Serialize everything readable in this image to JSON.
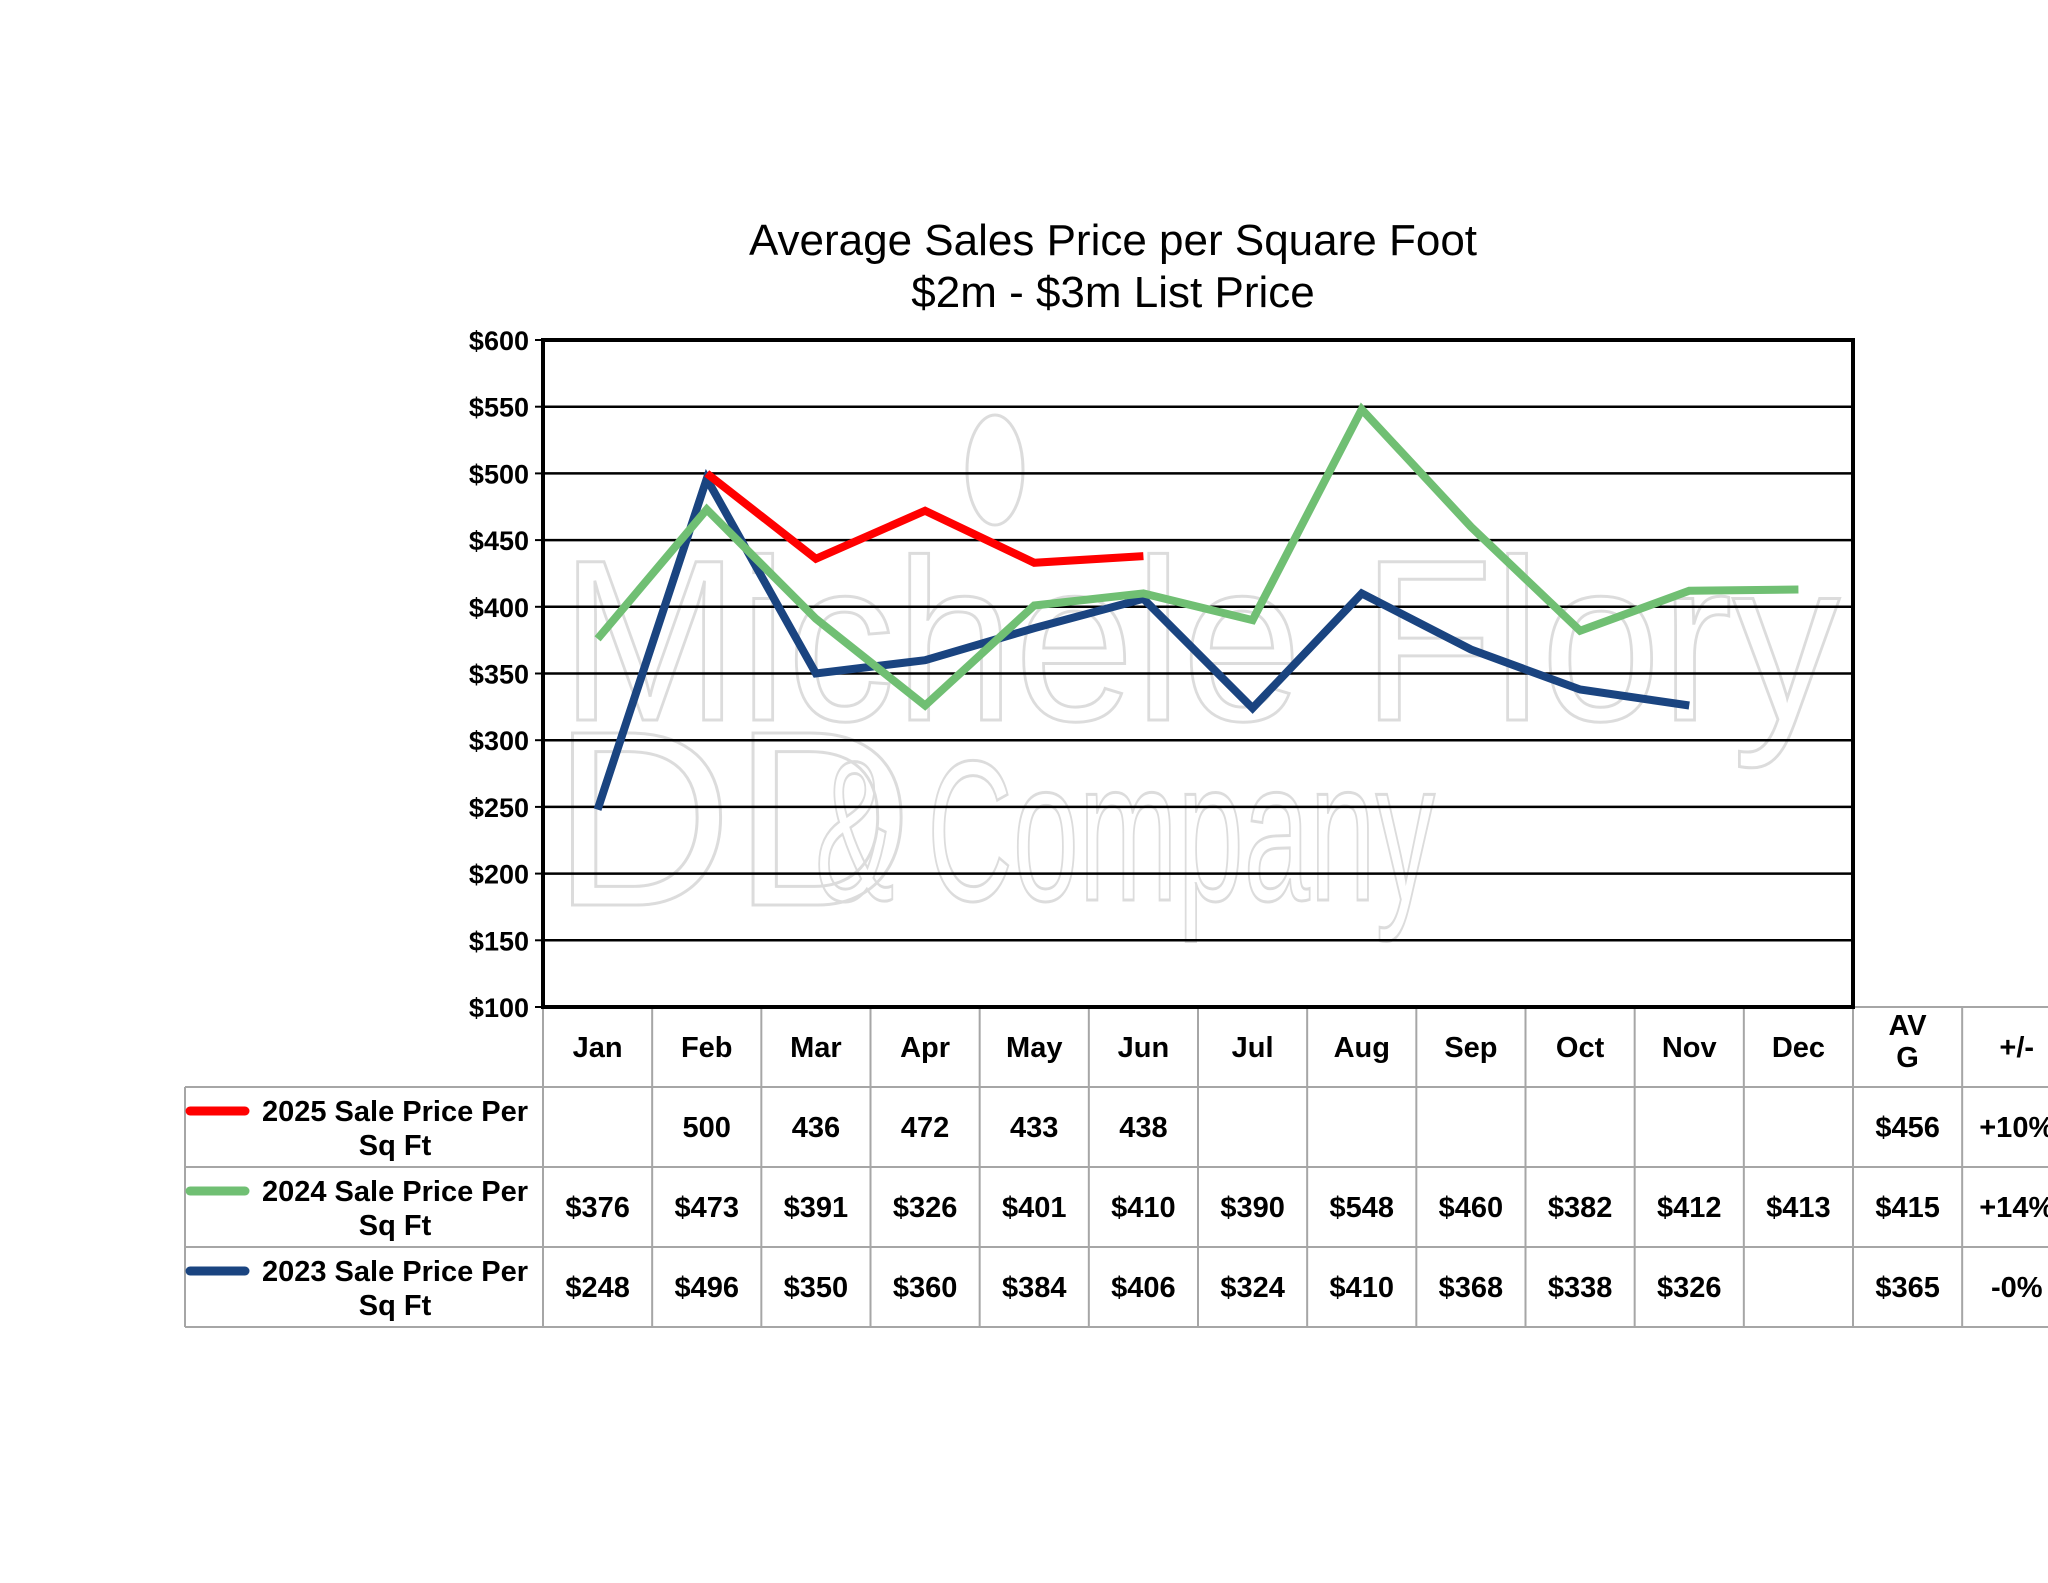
{
  "chart_data": {
    "type": "line",
    "title": "Average Sales Price per Square Foot",
    "subtitle": "$2m - $3m List Price",
    "ylim": [
      100,
      600
    ],
    "yticks": [
      "$100",
      "$150",
      "$200",
      "$250",
      "$300",
      "$350",
      "$400",
      "$450",
      "$500",
      "$550",
      "$600"
    ],
    "grid": true,
    "categories": [
      "Jan",
      "Feb",
      "Mar",
      "Apr",
      "May",
      "Jun",
      "Jul",
      "Aug",
      "Sep",
      "Oct",
      "Nov",
      "Dec"
    ],
    "extra_columns": [
      "AV\nG",
      "+/-"
    ],
    "series": [
      {
        "name": "2025 Sale Price Per Sq Ft",
        "color": "#ff0000",
        "values": [
          null,
          500,
          436,
          472,
          433,
          438,
          null,
          null,
          null,
          null,
          null,
          null
        ],
        "labels": [
          "",
          "500",
          "436",
          "472",
          "433",
          "438",
          "",
          "",
          "",
          "",
          "",
          ""
        ],
        "avg": "$456",
        "change": "+10%"
      },
      {
        "name": "2024 Sale Price Per Sq Ft",
        "color": "#70bf73",
        "values": [
          376,
          473,
          391,
          326,
          401,
          410,
          390,
          548,
          460,
          382,
          412,
          413
        ],
        "labels": [
          "$376",
          "$473",
          "$391",
          "$326",
          "$401",
          "$410",
          "$390",
          "$548",
          "$460",
          "$382",
          "$412",
          "$413"
        ],
        "avg": "$415",
        "change": "+14%"
      },
      {
        "name": "2023 Sale Price Per Sq Ft",
        "color": "#1a4480",
        "values": [
          248,
          496,
          350,
          360,
          384,
          406,
          324,
          410,
          368,
          338,
          326,
          null
        ],
        "labels": [
          "$248",
          "$496",
          "$350",
          "$360",
          "$384",
          "$406",
          "$324",
          "$410",
          "$368",
          "$338",
          "$326",
          ""
        ],
        "avg": "$365",
        "change": "-0%"
      }
    ]
  },
  "watermark": {
    "line1": "Michele Flory",
    "line2": "& Company",
    "monogram": "DD"
  }
}
